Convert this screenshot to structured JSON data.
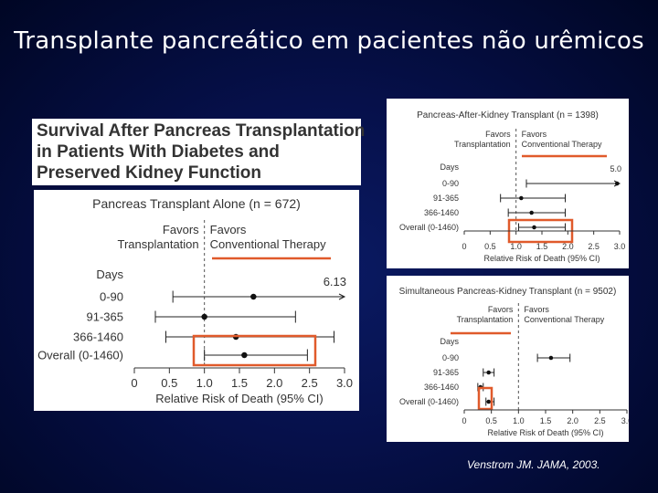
{
  "slide": {
    "title": "Transplante pancreático em pacientes não urêmicos",
    "article_title": [
      "Survival After Pancreas Transplantation",
      "in Patients With Diabetes and",
      "Preserved Kidney Function"
    ],
    "citation": "Venstrom JM. JAMA, 2003.",
    "highlight_color": "#e05a2b"
  },
  "chart_data": [
    {
      "type": "forest",
      "title": "Pancreas Transplant Alone (n = 672)",
      "favors_left": [
        "Favors",
        "Transplantation"
      ],
      "favors_right": [
        "Favors",
        "Conventional Therapy"
      ],
      "row_header": "Days",
      "xlabel": "Relative Risk of Death (95% CI)",
      "xlim": [
        0,
        3.0
      ],
      "xticks": [
        "0",
        "0.5",
        "1.0",
        "1.5",
        "2.0",
        "2.5",
        "3.0"
      ],
      "reference_line": 1.0,
      "rows": [
        {
          "label": "0-90",
          "estimate": 1.7,
          "lower": 0.55,
          "upper": 3.0,
          "arrow_right": true,
          "upper_label": "6.13"
        },
        {
          "label": "91-365",
          "estimate": 1.0,
          "lower": 0.3,
          "upper": 2.3
        },
        {
          "label": "366-1460",
          "estimate": 1.45,
          "lower": 0.45,
          "upper": 2.85
        },
        {
          "label": "Overall (0-1460)",
          "estimate": 1.57,
          "lower": 1.0,
          "upper": 2.47
        }
      ]
    },
    {
      "type": "forest",
      "title": "Pancreas-After-Kidney Transplant (n = 1398)",
      "favors_left": [
        "Favors",
        "Transplantation"
      ],
      "favors_right": [
        "Favors",
        "Conventional Therapy"
      ],
      "row_header": "Days",
      "xlabel": "Relative Risk of Death (95% CI)",
      "xlim": [
        0,
        3.0
      ],
      "xticks": [
        "0",
        "0.5",
        "1.0",
        "1.5",
        "2.0",
        "2.5",
        "3.0"
      ],
      "reference_line": 1.0,
      "rows": [
        {
          "label": "0-90",
          "estimate": 2.95,
          "lower": 1.2,
          "upper": 3.0,
          "arrow_right": true,
          "upper_label": "5.0"
        },
        {
          "label": "91-365",
          "estimate": 1.1,
          "lower": 0.7,
          "upper": 1.95
        },
        {
          "label": "366-1460",
          "estimate": 1.3,
          "lower": 0.85,
          "upper": 1.95
        },
        {
          "label": "Overall (0-1460)",
          "estimate": 1.35,
          "lower": 1.05,
          "upper": 1.95
        }
      ]
    },
    {
      "type": "forest",
      "title": "Simultaneous Pancreas-Kidney Transplant (n = 9502)",
      "favors_left": [
        "Favors",
        "Transplantation"
      ],
      "favors_right": [
        "Favors",
        "Conventional Therapy"
      ],
      "row_header": "Days",
      "xlabel": "Relative Risk of Death (95% CI)",
      "xlim": [
        0,
        3.0
      ],
      "xticks": [
        "0",
        "0.5",
        "1.0",
        "1.5",
        "2.0",
        "2.5",
        "3.0"
      ],
      "reference_line": 1.0,
      "rows": [
        {
          "label": "0-90",
          "estimate": 1.6,
          "lower": 1.35,
          "upper": 1.95
        },
        {
          "label": "91-365",
          "estimate": 0.45,
          "lower": 0.35,
          "upper": 0.55
        },
        {
          "label": "366-1460",
          "estimate": 0.3,
          "lower": 0.25,
          "upper": 0.35
        },
        {
          "label": "Overall (0-1460)",
          "estimate": 0.45,
          "lower": 0.4,
          "upper": 0.55
        }
      ]
    }
  ]
}
